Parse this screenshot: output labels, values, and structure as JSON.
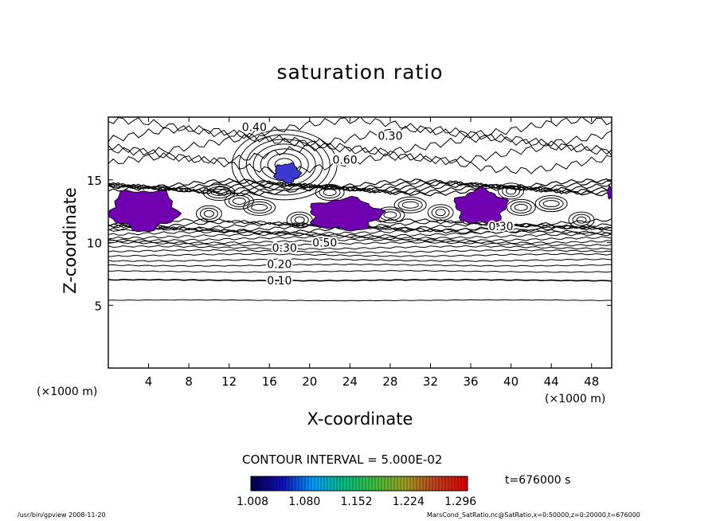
{
  "chart_data": {
    "type": "contour",
    "title": "saturation ratio",
    "xlabel": "X-coordinate",
    "ylabel": "Z-coordinate",
    "x_unit": "(×1000 m)",
    "y_unit": "(×1000 m)",
    "xlim": [
      0,
      50
    ],
    "ylim": [
      0,
      20
    ],
    "x_ticks": [
      4,
      8,
      12,
      16,
      20,
      24,
      28,
      32,
      36,
      40,
      44,
      48
    ],
    "y_ticks": [
      5,
      10,
      15
    ],
    "contour_interval_text": "CONTOUR INTERVAL = 5.000E-02",
    "contour_labels": [
      {
        "text": "0.10",
        "x": 17.0,
        "z": 7.0
      },
      {
        "text": "0.20",
        "x": 17.0,
        "z": 8.3
      },
      {
        "text": "0.30",
        "x": 17.5,
        "z": 9.6
      },
      {
        "text": "0.50",
        "x": 21.5,
        "z": 10.0
      },
      {
        "text": "0.30",
        "x": 28.0,
        "z": 18.5
      },
      {
        "text": "0.60",
        "x": 23.5,
        "z": 16.6
      },
      {
        "text": "0.40",
        "x": 14.5,
        "z": 19.2
      },
      {
        "text": "0.30",
        "x": 39.0,
        "z": 11.3
      }
    ],
    "supersaturated_regions": [
      {
        "x": [
          0.2,
          6.8
        ],
        "z": [
          11.0,
          14.2
        ],
        "max_ratio": 1.08
      },
      {
        "x": [
          16.5,
          19.0
        ],
        "z": [
          14.8,
          16.3
        ],
        "max_ratio": 1.15
      },
      {
        "x": [
          20.0,
          27.0
        ],
        "z": [
          11.0,
          13.5
        ],
        "max_ratio": 1.08
      },
      {
        "x": [
          34.5,
          39.5
        ],
        "z": [
          11.5,
          14.2
        ],
        "max_ratio": 1.08
      },
      {
        "x": [
          49.6,
          50.0
        ],
        "z": [
          13.5,
          14.5
        ],
        "max_ratio": 1.08
      }
    ],
    "colorbar": {
      "min": 1.008,
      "max": 1.296,
      "tick_labels": [
        "1.008",
        "1.080",
        "1.152",
        "1.224",
        "1.296"
      ],
      "colors": [
        "#000050",
        "#1010c0",
        "#00a0ff",
        "#00c080",
        "#40c040",
        "#a0a020",
        "#c04020",
        "#e00000"
      ]
    },
    "fill_color": "#7000b0",
    "time_label": "t=676000 s"
  },
  "footer": {
    "left": "/usr/bin/gpview  2008-11-20",
    "right": "MarsCond_SatRatio.nc@SatRatio,x=0:50000,z=0:20000,t=676000"
  }
}
